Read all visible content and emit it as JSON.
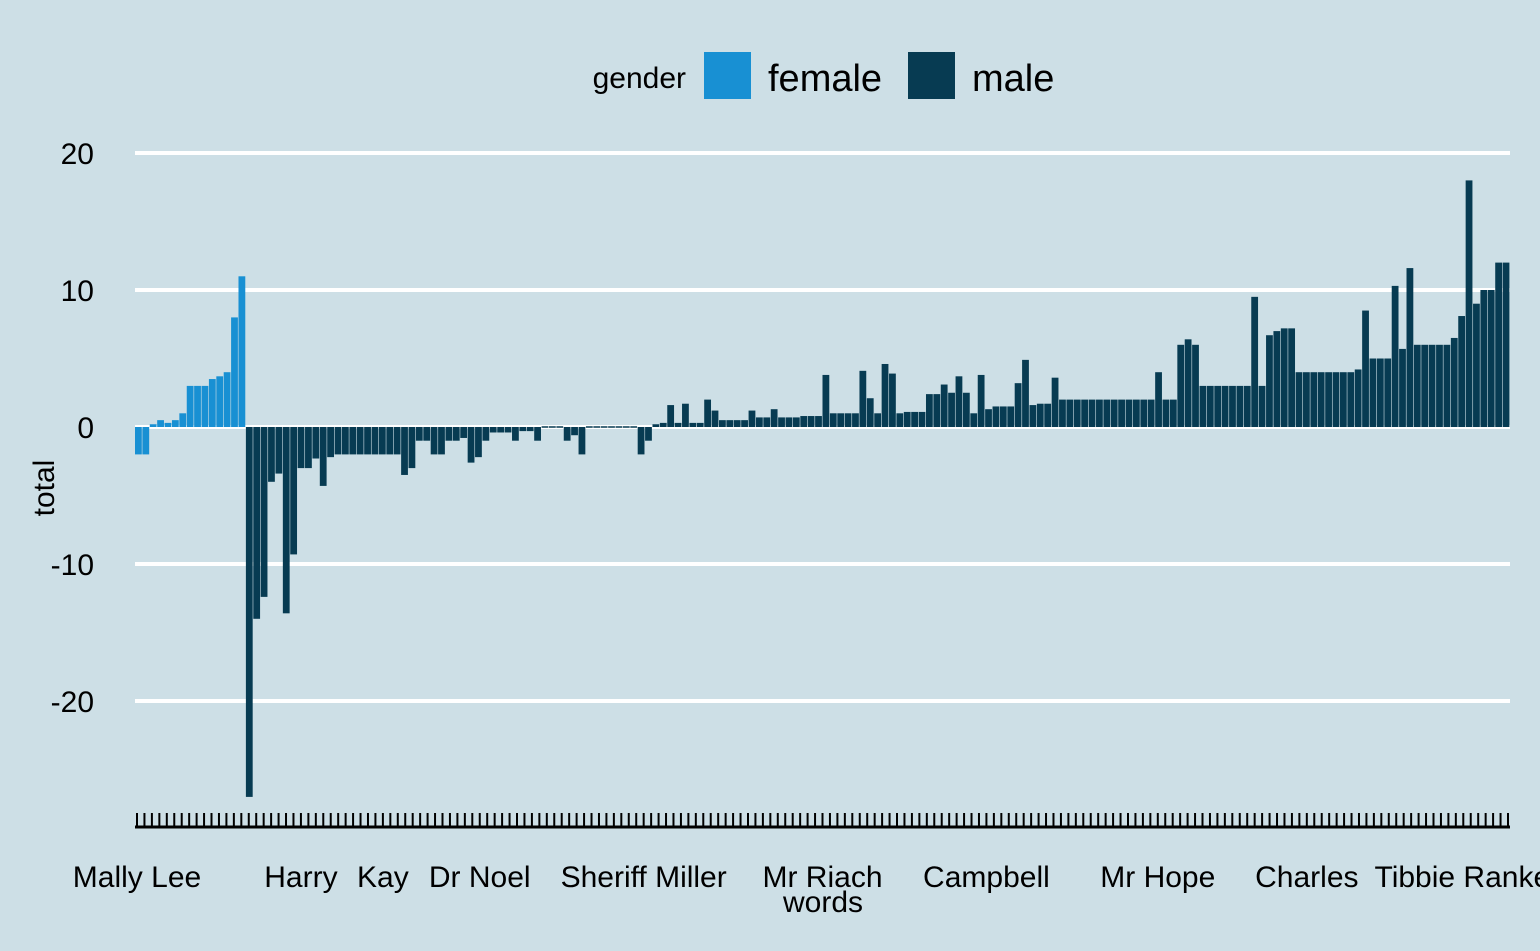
{
  "colors": {
    "background": "#cddfe6",
    "grid": "#ffffff",
    "female": "#1890d3",
    "male": "#073b52",
    "text": "#000000"
  },
  "legend": {
    "title": "gender",
    "placement": "top",
    "items": [
      {
        "label": "female",
        "color": "#1890d3"
      },
      {
        "label": "male",
        "color": "#073b52"
      }
    ]
  },
  "chart_data": {
    "type": "bar",
    "xlabel": "words",
    "ylabel": "total",
    "ylim": [
      -28.5,
      22
    ],
    "yticks": [
      -20,
      -10,
      0,
      10,
      20
    ],
    "grid": true,
    "xtick_count": 185,
    "xtick_labels": [
      {
        "label": "Mally Lee",
        "index": 0
      },
      {
        "label": "Harry",
        "index": 22
      },
      {
        "label": "Kay",
        "index": 33
      },
      {
        "label": "Dr Noel",
        "index": 46
      },
      {
        "label": "Sheriff Miller",
        "index": 68
      },
      {
        "label": "Mr Riach",
        "index": 92
      },
      {
        "label": "Campbell",
        "index": 114
      },
      {
        "label": "Mr Hope",
        "index": 137
      },
      {
        "label": "Charles",
        "index": 157
      },
      {
        "label": "Tibbie Rankeillor",
        "index": 181
      }
    ],
    "series": [
      {
        "name": "female",
        "color": "#1890d3",
        "values": [
          -2,
          -2,
          0.2,
          0.5,
          0.3,
          0.5,
          1,
          3,
          3,
          3,
          3.5,
          3.7,
          4,
          8,
          11
        ]
      },
      {
        "name": "male",
        "color": "#073b52",
        "values": [
          -27,
          -14,
          -12.4,
          -4,
          -3.4,
          -13.6,
          -9.3,
          -3,
          -3,
          -2.3,
          -4.3,
          -2.2,
          -2,
          -2,
          -2,
          -2,
          -2,
          -2,
          -2,
          -2,
          -2,
          -3.5,
          -3,
          -1,
          -1,
          -2,
          -2,
          -1,
          -1,
          -0.8,
          -2.6,
          -2.2,
          -1,
          -0.4,
          -0.4,
          -0.4,
          -1,
          -0.3,
          -0.3,
          -1,
          -0.1,
          -0.1,
          -0.1,
          -1,
          -0.6,
          -2,
          0,
          0,
          0,
          0,
          0,
          0,
          0,
          -2,
          -1,
          0.2,
          0.3,
          1.6,
          0.3,
          1.7,
          0.3,
          0.3,
          2,
          1.2,
          0.5,
          0.5,
          0.5,
          0.5,
          1.2,
          0.7,
          0.7,
          1.3,
          0.7,
          0.7,
          0.7,
          0.8,
          0.8,
          0.8,
          3.8,
          1,
          1,
          1,
          1,
          4.1,
          2.1,
          1,
          4.6,
          3.9,
          1,
          1.1,
          1.1,
          1.1,
          2.4,
          2.4,
          3.1,
          2.5,
          3.7,
          2.5,
          1,
          3.8,
          1.3,
          1.5,
          1.5,
          1.5,
          3.2,
          4.9,
          1.6,
          1.7,
          1.7,
          3.6,
          2,
          2,
          2,
          2,
          2,
          2,
          2,
          2,
          2,
          2,
          2,
          2,
          2,
          4,
          2,
          2,
          6,
          6.4,
          6,
          3,
          3,
          3,
          3,
          3,
          3,
          3,
          9.5,
          3,
          6.7,
          7,
          7.2,
          7.2,
          4,
          4,
          4,
          4,
          4,
          4,
          4,
          4,
          4.2,
          8.5,
          5,
          5,
          5,
          10.3,
          5.7,
          11.6,
          6,
          6,
          6,
          6,
          6,
          6.5,
          8.1,
          18,
          9,
          10,
          10,
          12,
          12
        ]
      }
    ]
  }
}
